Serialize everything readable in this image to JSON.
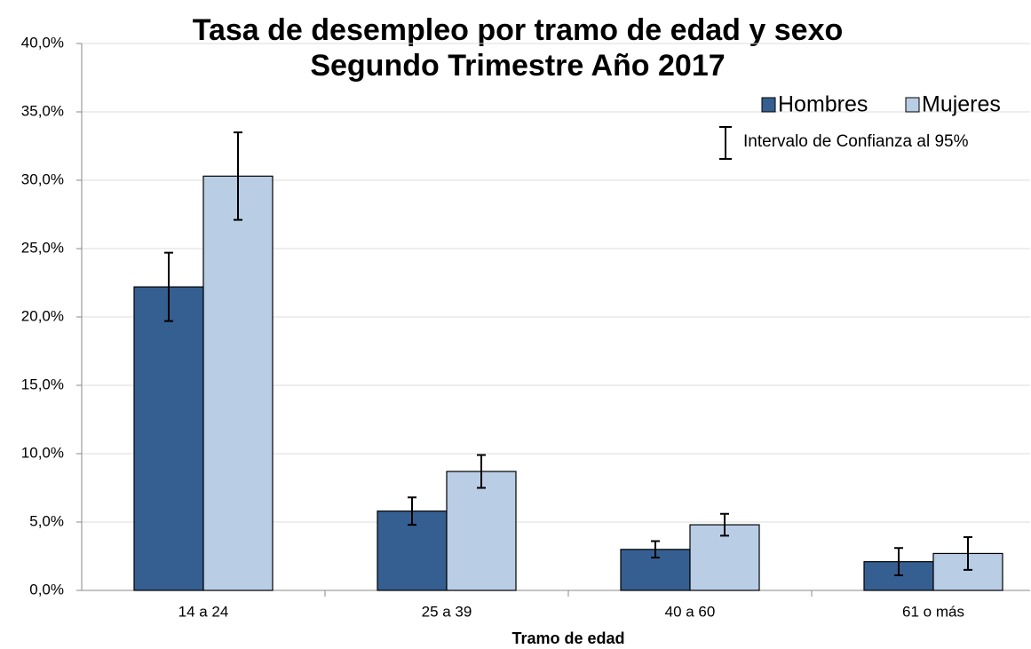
{
  "chart_data": {
    "type": "bar",
    "title": "Tasa de desempleo por tramo de edad y sexo",
    "subtitle": "Segundo Trimestre Año 2017",
    "x_label": "Tramo de edad",
    "error_legend": "Intervalo de Confianza al 95%",
    "categories": [
      "14 a 24",
      "25 a 39",
      "40 a 60",
      "61 o más"
    ],
    "series": [
      {
        "name": "Hombres",
        "color": "#355f91",
        "values": [
          22.2,
          5.8,
          3.0,
          2.1
        ],
        "errors": [
          2.5,
          1.0,
          0.6,
          1.0
        ]
      },
      {
        "name": "Mujeres",
        "color": "#b9cde5",
        "values": [
          30.3,
          8.7,
          4.8,
          2.7
        ],
        "errors": [
          3.2,
          1.2,
          0.8,
          1.2
        ]
      }
    ],
    "ylim": [
      0,
      40
    ],
    "yticks": [
      {
        "value": 0,
        "label": "0,0%"
      },
      {
        "value": 5,
        "label": "5,0%"
      },
      {
        "value": 10,
        "label": "10,0%"
      },
      {
        "value": 15,
        "label": "15,0%"
      },
      {
        "value": 20,
        "label": "20,0%"
      },
      {
        "value": 25,
        "label": "25,0%"
      },
      {
        "value": 30,
        "label": "30,0%"
      },
      {
        "value": 35,
        "label": "35,0%"
      },
      {
        "value": 40,
        "label": "40,0%"
      }
    ],
    "grid": true,
    "legend": "top-right"
  }
}
